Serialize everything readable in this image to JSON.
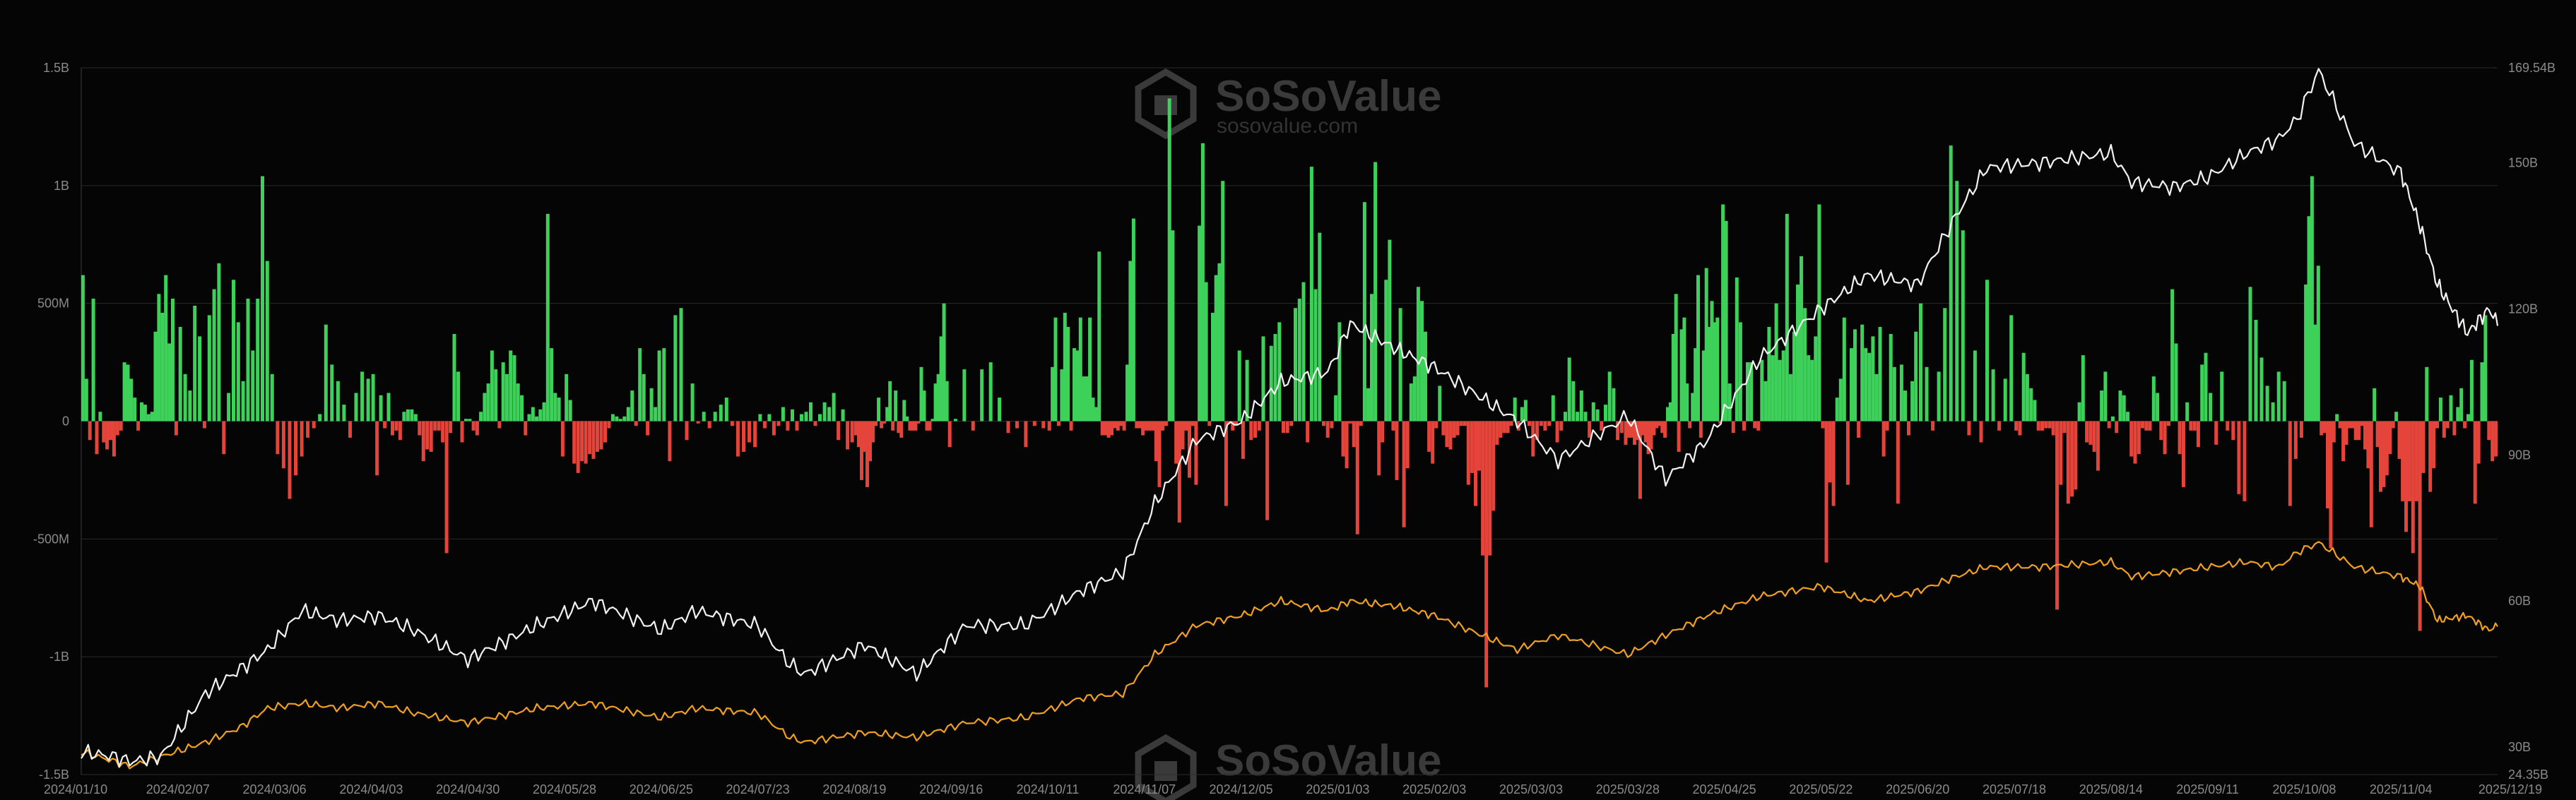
{
  "watermark": {
    "brand": "SoSoValue",
    "site": "sosovalue.com"
  },
  "chart_data": {
    "type": "bar+line",
    "title": "",
    "xlabel": "",
    "ylabel": "",
    "grid": true,
    "legend": "none",
    "colors": {
      "inflow": "#3dd15a",
      "outflow": "#e4443a",
      "white_line": "#f2f2f2",
      "orange_line": "#f0a020"
    },
    "x_tick_labels": [
      "2024/01/10",
      "2024/02/07",
      "2024/03/06",
      "2024/04/03",
      "2024/04/30",
      "2024/05/28",
      "2024/06/25",
      "2024/07/23",
      "2024/08/19",
      "2024/09/16",
      "2024/10/11",
      "2024/11/07",
      "2024/12/05",
      "2025/01/03",
      "2025/02/03",
      "2025/03/03",
      "2025/03/28",
      "2025/04/25",
      "2025/05/22",
      "2025/06/20",
      "2025/07/18",
      "2025/08/14",
      "2025/09/11",
      "2025/10/08",
      "2025/11/04",
      "2025/12/19"
    ],
    "y_left": {
      "ticks": [
        "-1.5B",
        "-1B",
        "-500M",
        "0",
        "500M",
        "1B",
        "1.5B"
      ],
      "values": [
        -1500,
        -1000,
        -500,
        0,
        500,
        1000,
        1500
      ],
      "unit": "M",
      "range": [
        -1500,
        1500
      ]
    },
    "y_right": {
      "ticks": [
        "24.35B",
        "30B",
        "60B",
        "90B",
        "120B",
        "150B",
        "169.54B"
      ],
      "values": [
        24.35,
        30,
        60,
        90,
        120,
        150,
        169.54
      ],
      "unit": "B",
      "range": [
        24.35,
        169.54
      ]
    },
    "flows": [
      {
        "start": "2024/01/10",
        "end": "2024/02/07",
        "values": [
          620,
          180,
          -80,
          520,
          -140,
          40,
          -90,
          -120,
          -80,
          -150,
          -60,
          -40,
          250,
          240,
          180,
          100,
          -40,
          80,
          70,
          30,
          40,
          380,
          540,
          460,
          620,
          330,
          520,
          -60
        ]
      },
      {
        "start": "2024/02/07",
        "end": "2024/03/06",
        "values": [
          400,
          200,
          130,
          490,
          360,
          -30,
          450,
          560,
          670,
          -140,
          120,
          600,
          420,
          170,
          520,
          300,
          520,
          1040,
          680,
          200
        ]
      },
      {
        "start": "2024/03/06",
        "end": "2024/04/03",
        "values": [
          -140,
          -200,
          -330,
          -230,
          -150,
          -70,
          -30,
          30,
          410,
          240,
          170,
          70,
          -70,
          120,
          210,
          180
        ]
      },
      {
        "start": "2024/04/03",
        "end": "2024/04/30",
        "values": [
          200,
          -230,
          110,
          -30,
          120,
          -60,
          -40,
          -80,
          40,
          50,
          50,
          30,
          -60,
          -170,
          -120,
          -130,
          -40,
          -40,
          -90,
          -560,
          -50,
          370,
          210,
          -90,
          10
        ]
      },
      {
        "start": "2024/04/30",
        "end": "2024/05/28",
        "values": [
          10,
          -40,
          -60,
          40,
          120,
          160,
          300,
          220,
          -30,
          250,
          200,
          300,
          280,
          160,
          110,
          -60,
          30,
          60,
          20,
          50,
          80,
          880,
          310,
          120,
          100,
          -150
        ]
      },
      {
        "start": "2024/05/28",
        "end": "2024/06/25",
        "values": [
          200,
          90,
          -180,
          -220,
          -170,
          -180,
          -140,
          -160,
          -130,
          -120,
          -90,
          -30,
          30,
          20,
          10,
          20,
          60,
          130,
          -20,
          310,
          200,
          -60,
          140,
          60,
          300
        ]
      },
      {
        "start": "2024/06/25",
        "end": "2024/07/23",
        "values": [
          310,
          -170,
          450,
          480,
          -80,
          160,
          -10,
          40,
          -30,
          40,
          70,
          100,
          -20,
          -150,
          -130,
          -90,
          -110
        ]
      },
      {
        "start": "2024/07/23",
        "end": "2024/08/19",
        "values": [
          30,
          -30,
          30,
          -60,
          -20,
          60,
          -40,
          50,
          -40,
          30,
          40,
          80,
          -20,
          30,
          80,
          60,
          120,
          -80,
          50,
          -120,
          -90
        ]
      },
      {
        "start": "2024/08/19",
        "end": "2024/09/16",
        "values": [
          -60,
          -110,
          -250,
          -130,
          -280,
          -170,
          -90,
          -20,
          100,
          -30,
          -10,
          60,
          170,
          -40,
          130,
          -50,
          -70,
          90,
          20,
          -40,
          -40,
          -40,
          -10,
          230,
          130,
          -40,
          -40,
          10,
          160,
          200,
          360,
          500,
          170,
          -110
        ]
      },
      {
        "start": "2024/09/16",
        "end": "2024/10/11",
        "values": [
          10,
          220,
          -40,
          220,
          250,
          100,
          -50,
          -30,
          -110,
          -20,
          -30
        ]
      },
      {
        "start": "2024/10/11",
        "end": "2024/11/07",
        "values": [
          -40,
          230,
          440,
          -20,
          220,
          460,
          400,
          -40,
          310,
          300,
          440,
          190,
          190,
          440,
          100,
          60,
          720,
          -60,
          -60,
          -70,
          -60,
          -30,
          -40,
          -20,
          -40,
          240,
          680,
          860,
          -30,
          -30,
          -60
        ]
      },
      {
        "start": "2024/11/07",
        "end": "2024/12/05",
        "values": [
          -40,
          -40,
          -40,
          -170,
          -280,
          -40,
          -20,
          1370,
          810,
          -180,
          -430,
          -120,
          -40,
          -240,
          -20,
          -270,
          830,
          1180,
          590,
          -20,
          460,
          620,
          670,
          1020,
          -360,
          -10,
          -40,
          -20,
          300
        ]
      },
      {
        "start": "2024/12/05",
        "end": "2024/12/05",
        "values": []
      },
      {
        "start": "2024/12/05",
        "end": "2025/01/03",
        "values": [
          -160,
          260,
          -80,
          -70,
          -40,
          360,
          -420,
          320,
          370,
          420,
          -50,
          -50,
          -20,
          480,
          520,
          590,
          -90,
          1080,
          560,
          800,
          -20,
          -70,
          -30,
          110
        ]
      },
      {
        "start": "2025/01/03",
        "end": "2025/02/03",
        "values": [
          420,
          -150,
          -200,
          -10,
          -110,
          -480,
          -20,
          930,
          140,
          540,
          1100,
          -230,
          -90,
          600,
          770,
          -40,
          -250,
          480,
          -450,
          -200,
          160,
          190,
          570,
          510,
          380,
          -130,
          -180
        ]
      },
      {
        "start": "2025/02/03",
        "end": "2025/03/03",
        "values": [
          -30,
          150,
          -60,
          -110,
          -120,
          -70,
          -60,
          -20,
          -20,
          -270,
          -220,
          -360,
          -210,
          -570,
          -1130,
          -570,
          -380,
          -100,
          -70,
          -50,
          -50,
          -20,
          100,
          -40,
          60,
          90,
          -20
        ]
      },
      {
        "start": "2025/03/03",
        "end": "2025/03/28",
        "values": [
          -150,
          -80,
          -20,
          -40,
          -20,
          110,
          -90,
          -40,
          40,
          270,
          170,
          40,
          130,
          40,
          -70,
          80,
          50,
          -40,
          70,
          210,
          140,
          -80,
          -50,
          -100
        ]
      },
      {
        "start": "2025/03/28",
        "end": "2025/04/25",
        "values": [
          -70,
          -70,
          -100,
          -80,
          -330,
          -60,
          -90,
          -140,
          -120,
          -60,
          -30,
          -20,
          -50,
          -70,
          60,
          80,
          370,
          540,
          -130,
          390,
          440,
          160,
          -30,
          120,
          310,
          620,
          -70,
          300,
          650,
          400,
          510,
          420,
          440,
          -10,
          920
        ]
      },
      {
        "start": "2025/04/25",
        "end": "2025/05/22",
        "values": [
          850,
          160,
          -50,
          610,
          420,
          -40,
          250,
          250,
          -30,
          -40,
          260,
          170,
          400,
          280,
          500,
          260,
          300,
          880,
          200,
          380,
          580,
          700,
          480,
          280,
          260,
          360,
          920
        ]
      },
      {
        "start": "2025/05/22",
        "end": "2025/06/20",
        "values": [
          -30,
          -600,
          -260,
          -360,
          100,
          180,
          440,
          -270,
          310,
          390,
          -70,
          410,
          310,
          290,
          360,
          200,
          400,
          -150,
          -40,
          370,
          230,
          -350,
          240,
          130,
          -60,
          170,
          380
        ]
      },
      {
        "start": "2025/06/20",
        "end": "2025/07/18",
        "values": [
          500,
          230,
          -40,
          210,
          480,
          1170,
          1020,
          810,
          -60,
          300,
          -90,
          600,
          220,
          -40,
          180,
          450
        ]
      },
      {
        "start": "2025/07/18",
        "end": "2025/08/14",
        "values": [
          -40,
          -60,
          290,
          200,
          140,
          90,
          -40,
          -40,
          -30,
          -30,
          -60,
          -800,
          -270,
          -50,
          -350,
          -320,
          -290,
          80,
          280,
          -90,
          -100,
          -130,
          -210,
          130,
          210,
          -30
        ]
      },
      {
        "start": "2025/08/14",
        "end": "2025/09/11",
        "values": [
          20,
          -50,
          130,
          110,
          40,
          -150,
          -180,
          -140,
          -30,
          -40,
          -40,
          190,
          120,
          -80,
          -140,
          -20,
          560,
          330,
          -140,
          -280,
          80,
          -40,
          -40,
          -110,
          240,
          290
        ]
      },
      {
        "start": "2025/09/11",
        "end": "2025/10/08",
        "values": [
          120,
          -100,
          210,
          -40,
          -80,
          -310,
          -340,
          570,
          430,
          270,
          150,
          80,
          210,
          170,
          -360,
          -160,
          -70
        ]
      },
      {
        "start": "2025/10/08",
        "end": "2025/10/08",
        "values": []
      },
      {
        "start": "2025/10/08",
        "end": "2025/11/04",
        "values": [
          580,
          870,
          1040,
          410,
          660,
          -60,
          -50,
          -370,
          -540,
          -90,
          30,
          -30,
          -170,
          -100,
          -30,
          -30,
          -80,
          -80,
          -20,
          -120,
          -200,
          -450,
          140,
          -110,
          -300,
          -280,
          -230,
          -140,
          -30,
          40,
          -160
        ]
      },
      {
        "start": "2025/11/04",
        "end": "2025/12/19",
        "values": [
          -340,
          -470,
          -340,
          -560,
          -340,
          -890,
          -220,
          230,
          -300,
          -200,
          -30,
          100,
          -70,
          -30,
          110,
          -60,
          60,
          140,
          -30,
          30,
          260,
          -350,
          -180,
          250,
          450,
          -80,
          -170,
          -150
        ]
      }
    ],
    "white_line_anchors": {
      "x": [
        "2024/01/10",
        "2024/01/20",
        "2024/01/24",
        "2024/02/02",
        "2024/02/15",
        "2024/02/25",
        "2024/03/04",
        "2024/03/14",
        "2024/03/25",
        "2024/04/05",
        "2024/04/15",
        "2024/04/30",
        "2024/05/20",
        "2024/06/05",
        "2024/06/25",
        "2024/07/05",
        "2024/07/23",
        "2024/08/01",
        "2024/08/05",
        "2024/08/22",
        "2024/09/06",
        "2024/09/20",
        "2024/10/05",
        "2024/10/20",
        "2024/11/01",
        "2024/11/10",
        "2024/11/22",
        "2024/12/05",
        "2024/12/17",
        "2024/12/31",
        "2025/01/07",
        "2025/01/21",
        "2025/02/03",
        "2025/02/27",
        "2025/03/10",
        "2025/03/28",
        "2025/04/08",
        "2025/04/20",
        "2025/05/05",
        "2025/05/22",
        "2025/06/05",
        "2025/06/20",
        "2025/07/01",
        "2025/07/10",
        "2025/07/25",
        "2025/08/14",
        "2025/08/20",
        "2025/09/01",
        "2025/09/11",
        "2025/09/22",
        "2025/10/01",
        "2025/10/06",
        "2025/10/12",
        "2025/10/22",
        "2025/11/04",
        "2025/11/13",
        "2025/11/21",
        "2025/12/05",
        "2025/12/15",
        "2025/12/19"
      ],
      "values": [
        29,
        28,
        27,
        28,
        41,
        46,
        50,
        58,
        56,
        57,
        54,
        48,
        55,
        60,
        54,
        58,
        55,
        47,
        45,
        51,
        45,
        55,
        55,
        62,
        66,
        80,
        93,
        97,
        105,
        107,
        117,
        112,
        108,
        97,
        89,
        98,
        85,
        93,
        110,
        120,
        127,
        125,
        139,
        149,
        150,
        152,
        146,
        145,
        147,
        152,
        155,
        159,
        169,
        154,
        148,
        137,
        125,
        115,
        120,
        117
      ]
    },
    "orange_line_anchors": {
      "x": [
        "2024/01/10",
        "2024/01/20",
        "2024/01/24",
        "2024/02/02",
        "2024/02/15",
        "2024/02/25",
        "2024/03/04",
        "2024/03/14",
        "2024/03/25",
        "2024/04/05",
        "2024/04/15",
        "2024/04/30",
        "2024/05/20",
        "2024/06/05",
        "2024/06/25",
        "2024/07/05",
        "2024/07/23",
        "2024/08/01",
        "2024/08/05",
        "2024/08/22",
        "2024/09/06",
        "2024/09/20",
        "2024/10/05",
        "2024/10/20",
        "2024/11/01",
        "2024/11/10",
        "2024/11/22",
        "2024/12/05",
        "2024/12/17",
        "2024/12/31",
        "2025/01/07",
        "2025/01/21",
        "2025/02/03",
        "2025/02/27",
        "2025/03/10",
        "2025/03/28",
        "2025/04/08",
        "2025/04/20",
        "2025/05/05",
        "2025/05/22",
        "2025/06/05",
        "2025/06/20",
        "2025/07/01",
        "2025/07/10",
        "2025/07/25",
        "2025/08/14",
        "2025/08/20",
        "2025/09/01",
        "2025/09/11",
        "2025/09/22",
        "2025/10/01",
        "2025/10/06",
        "2025/10/12",
        "2025/10/22",
        "2025/11/04",
        "2025/11/13",
        "2025/11/21",
        "2025/12/05",
        "2025/12/15",
        "2025/12/19"
      ],
      "values": [
        29,
        27,
        26,
        28,
        31,
        34,
        38,
        39,
        38,
        39,
        37,
        35,
        38,
        39,
        36,
        38,
        37,
        32,
        31,
        33,
        32,
        35,
        36,
        40,
        41,
        49,
        55,
        57,
        60,
        58,
        60,
        59,
        57,
        50,
        53,
        49,
        53,
        57,
        61,
        63,
        60,
        62,
        65,
        67,
        67,
        68,
        65,
        66,
        67,
        68,
        67,
        70,
        72,
        67,
        65,
        63,
        56,
        57,
        54,
        55
      ]
    }
  }
}
